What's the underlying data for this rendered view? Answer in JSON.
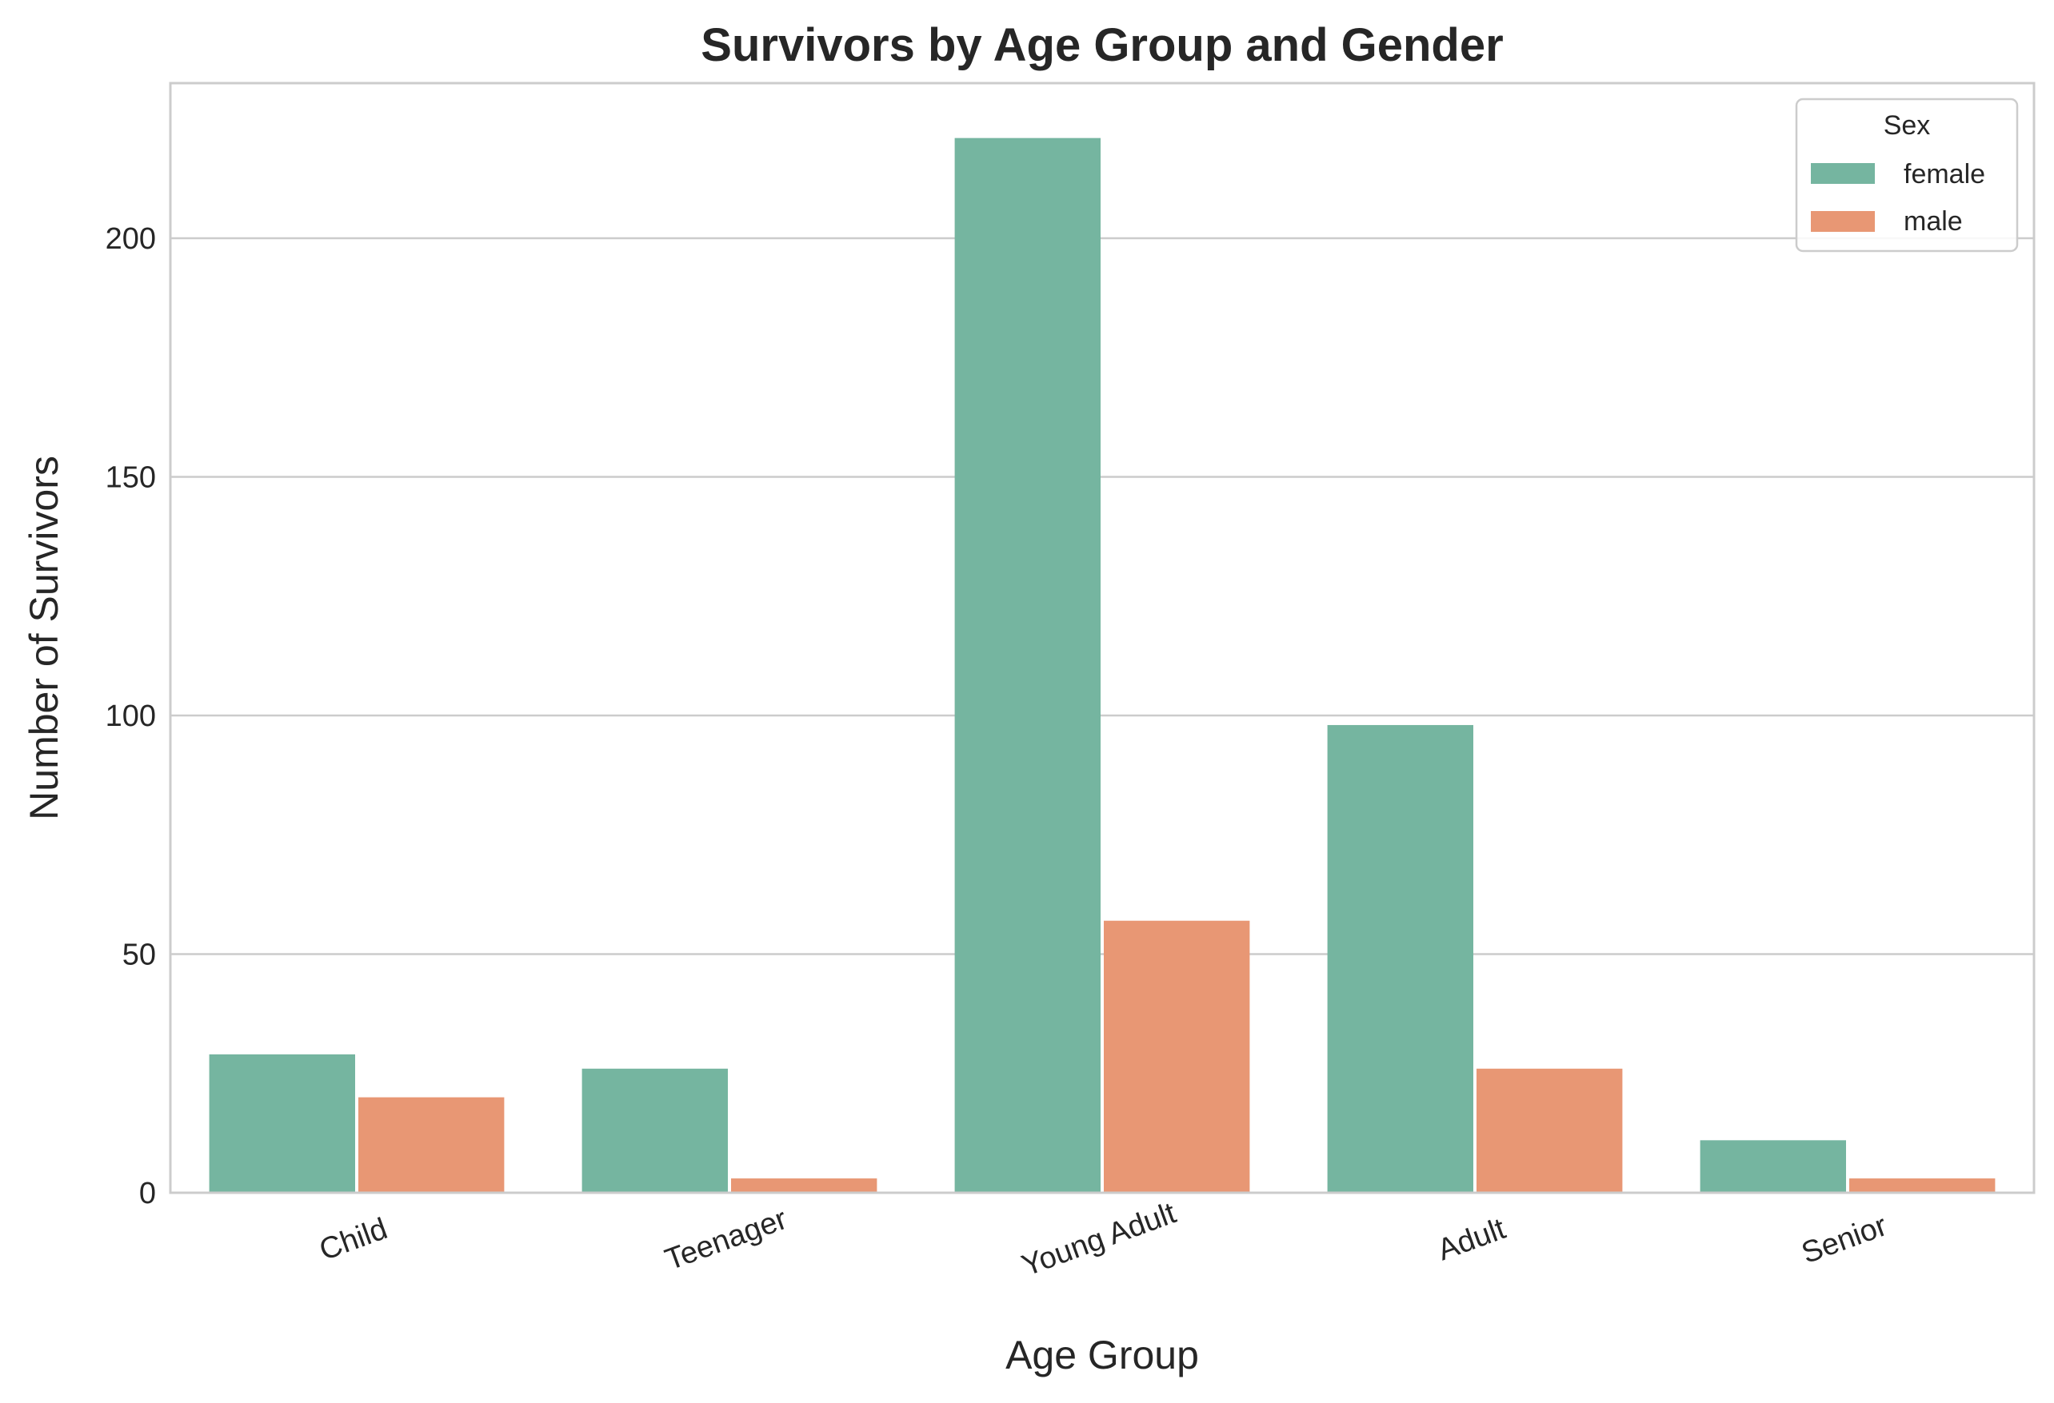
{
  "chart_data": {
    "type": "bar",
    "title": "Survivors by Age Group and Gender",
    "xlabel": "Age Group",
    "ylabel": "Number of Survivors",
    "categories": [
      "Child",
      "Teenager",
      "Young Adult",
      "Adult",
      "Senior"
    ],
    "series": [
      {
        "name": "female",
        "color": "#75b5a0",
        "values": [
          29,
          26,
          221,
          98,
          11
        ]
      },
      {
        "name": "male",
        "color": "#e89774",
        "values": [
          20,
          3,
          57,
          26,
          3
        ]
      }
    ],
    "ylim": [
      0,
      232.5
    ],
    "yticks": [
      0,
      50,
      100,
      150,
      200
    ],
    "grid": true,
    "legend": {
      "title": "Sex",
      "placement": "top-right"
    }
  }
}
